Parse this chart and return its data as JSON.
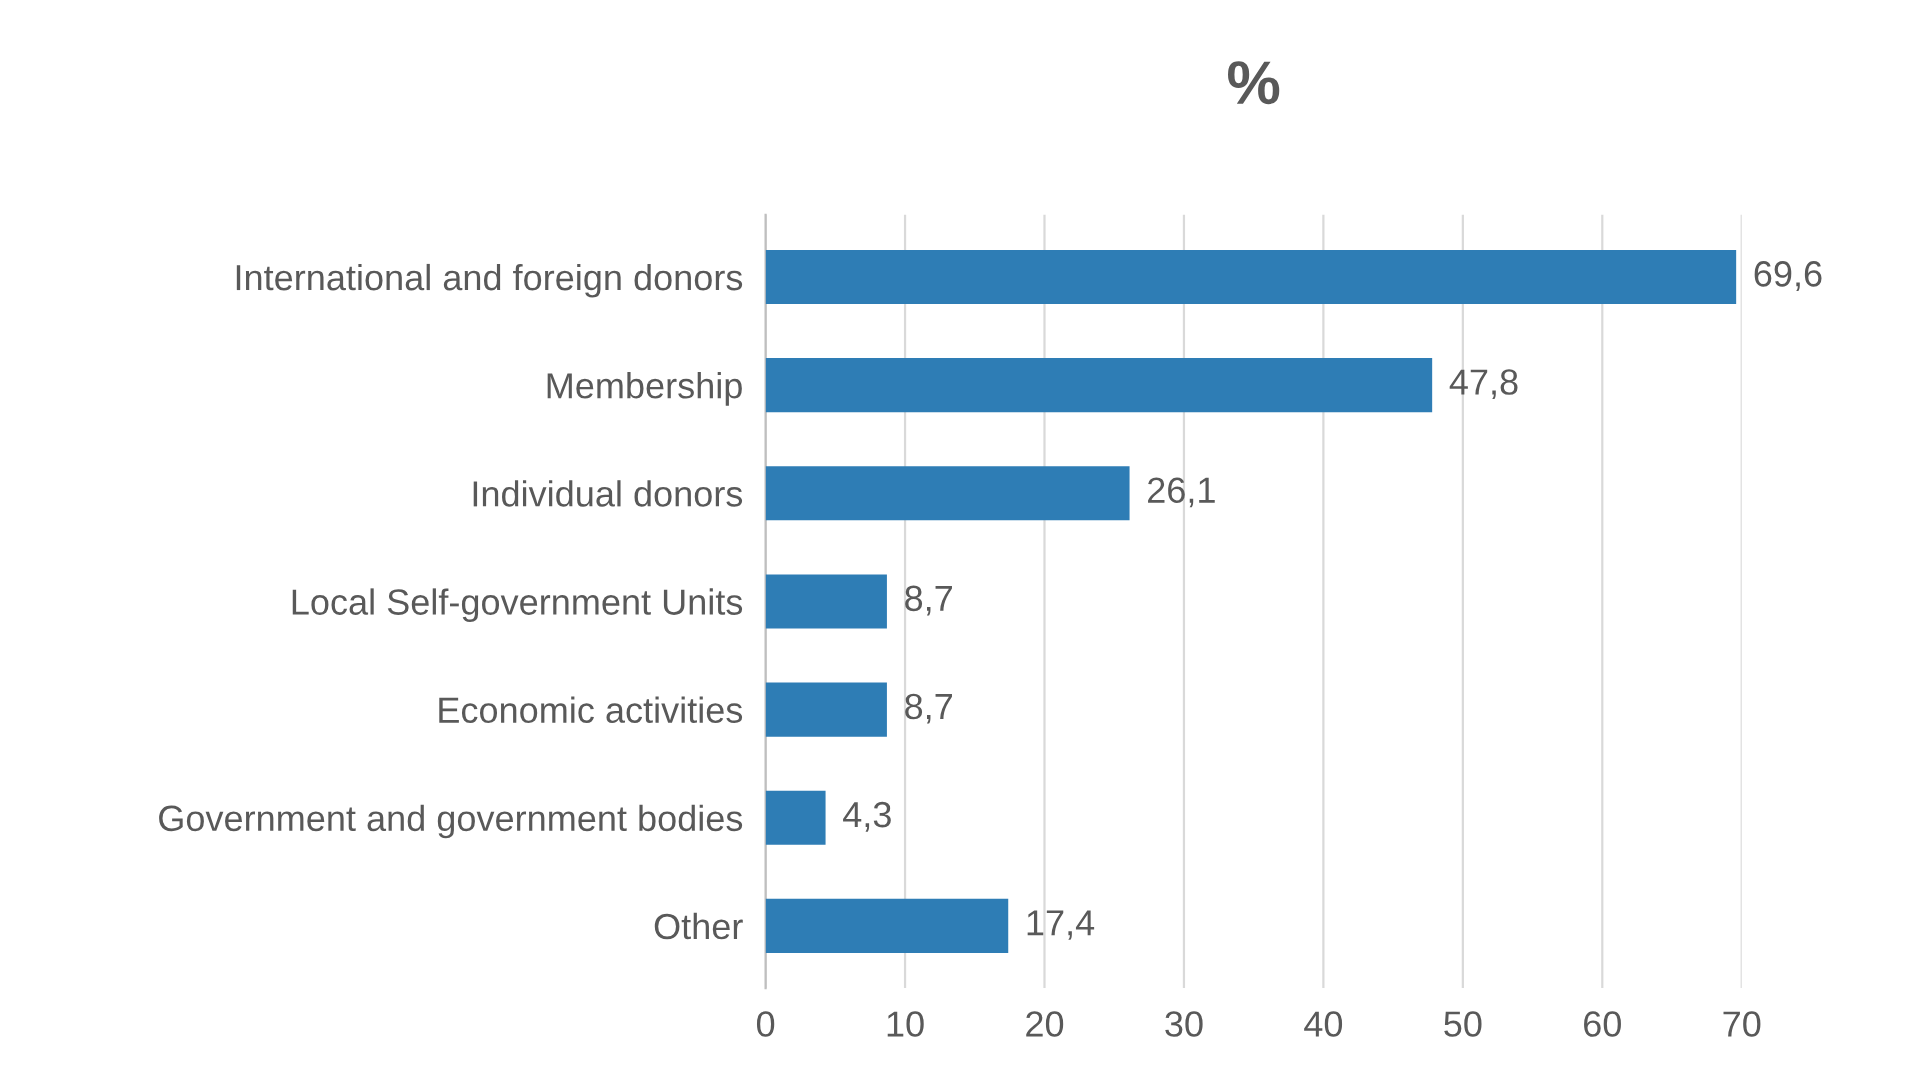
{
  "chart_data": {
    "type": "bar",
    "orientation": "horizontal",
    "title": "%",
    "categories": [
      "International and foreign donors",
      "Membership",
      "Individual donors",
      "Local Self-government Units",
      "Economic activities",
      "Government and government bodies",
      "Other"
    ],
    "values": [
      69.6,
      47.8,
      26.1,
      8.7,
      8.7,
      4.3,
      17.4
    ],
    "value_labels": [
      "69,6",
      "47,8",
      "26,1",
      "8,7",
      "8,7",
      "4,3",
      "17,4"
    ],
    "color": "#2e7db5",
    "xlim": [
      0,
      70
    ],
    "xticks": [
      0,
      10,
      20,
      30,
      40,
      50,
      60,
      70
    ],
    "grid": "x"
  }
}
